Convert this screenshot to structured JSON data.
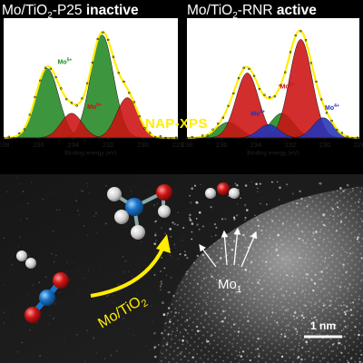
{
  "titles": {
    "left": {
      "prefix": "Mo/TiO",
      "sub": "2",
      "suffix": "-P25",
      "status": "inactive"
    },
    "right": {
      "prefix": "Mo/TiO",
      "sub": "2",
      "suffix": "-RNR",
      "status": "active"
    }
  },
  "technique_label": "NAP-XPS",
  "colors": {
    "background": "#000000",
    "title_text": "#ffffff",
    "xps_label": "#ffee00",
    "envelope": "#ffee00",
    "data_markers": "#111111",
    "mo6_fill": "#cc1111",
    "mo5_fill": "#228822",
    "mo4_fill": "#2233bb",
    "arrow": "#ffee00",
    "hydrogen": "#d4d4d4",
    "oxygen": "#cc1111",
    "carbon": "#1a73c8"
  },
  "chart_data": [
    {
      "type": "area",
      "panel": "Mo/TiO2-P25",
      "status": "inactive",
      "xlabel": "Binding energy (eV)",
      "xlim": [
        238,
        228
      ],
      "x_ticks": [
        238,
        236,
        234,
        232,
        230,
        228
      ],
      "ylim": [
        0,
        1.07
      ],
      "grid": false,
      "legend": "none",
      "series": [
        {
          "name": "Mo5+",
          "color": "#228822",
          "peaks": [
            {
              "center": 235.5,
              "height": 0.62,
              "fwhm": 1.55
            },
            {
              "center": 232.35,
              "height": 0.92,
              "fwhm": 1.55
            }
          ]
        },
        {
          "name": "Mo6+",
          "color": "#cc1111",
          "peaks": [
            {
              "center": 234.1,
              "height": 0.22,
              "fwhm": 1.45
            },
            {
              "center": 230.9,
              "height": 0.36,
              "fwhm": 1.45
            }
          ]
        }
      ],
      "peak_labels": [
        {
          "text": "Mo5+",
          "x": 234.9,
          "y": 0.66,
          "color": "#228822"
        },
        {
          "text": "Mo6+",
          "x": 233.2,
          "y": 0.26,
          "color": "#cc1111"
        }
      ],
      "envelope": {
        "color": "#ffee00",
        "markers": true
      }
    },
    {
      "type": "area",
      "panel": "Mo/TiO2-RNR",
      "status": "active",
      "xlabel": "Binding energy (eV)",
      "xlim": [
        238,
        228
      ],
      "x_ticks": [
        238,
        236,
        234,
        232,
        230,
        228
      ],
      "ylim": [
        0,
        1.07
      ],
      "grid": false,
      "legend": "none",
      "series": [
        {
          "name": "Mo5+",
          "color": "#228822",
          "peaks": [
            {
              "center": 235.6,
              "height": 0.14,
              "fwhm": 1.6
            },
            {
              "center": 232.5,
              "height": 0.22,
              "fwhm": 1.6
            }
          ]
        },
        {
          "name": "Mo6+",
          "color": "#cc1111",
          "peaks": [
            {
              "center": 234.5,
              "height": 0.58,
              "fwhm": 1.55
            },
            {
              "center": 231.4,
              "height": 0.88,
              "fwhm": 1.55
            }
          ]
        },
        {
          "name": "Mo4+",
          "color": "#2233bb",
          "peaks": [
            {
              "center": 233.25,
              "height": 0.12,
              "fwhm": 1.4
            },
            {
              "center": 230.1,
              "height": 0.18,
              "fwhm": 1.4
            }
          ]
        }
      ],
      "peak_labels": [
        {
          "text": "Mo5+",
          "x": 232.6,
          "y": 0.44,
          "color": "#cc1111"
        },
        {
          "text": "Mo4+",
          "x": 234.3,
          "y": 0.2,
          "color": "#2233bb"
        },
        {
          "text": "Mo4+",
          "x": 230.0,
          "y": 0.25,
          "color": "#2233bb"
        }
      ],
      "envelope": {
        "color": "#ffee00",
        "markers": true
      }
    }
  ],
  "microscopy": {
    "arrow_label": "Mo/TiO2",
    "atom_label": "Mo1",
    "scale_bar": "1 nm"
  }
}
